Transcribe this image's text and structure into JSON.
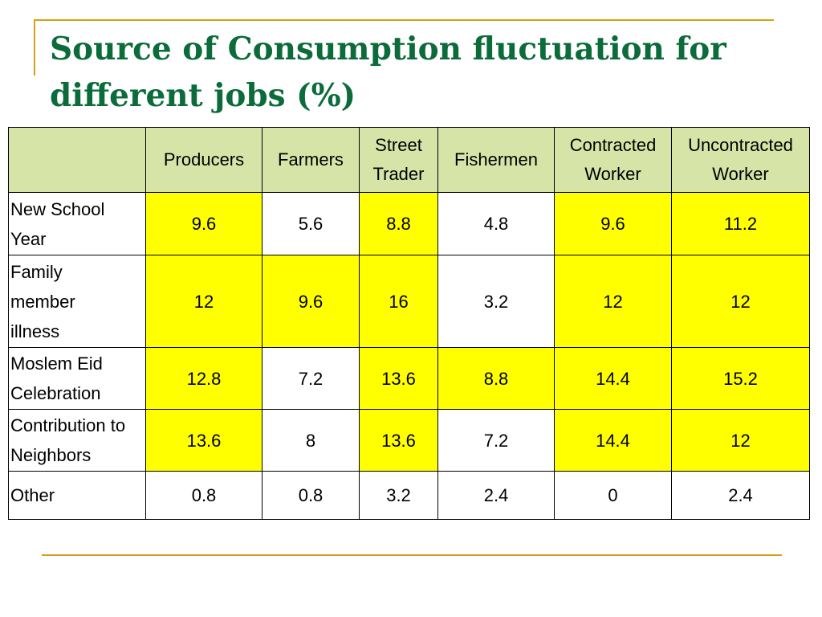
{
  "slide": {
    "title": "Source of Consumption fluctuation for different jobs (%)"
  },
  "table": {
    "headers": [
      "",
      "Producers",
      "Farmers",
      "Street Trader",
      "Fishermen",
      "Contracted Worker",
      "Uncontracted Worker"
    ],
    "header_background": "#d7e4a8",
    "highlight_color": "#ffff00",
    "rows": [
      {
        "label": "New School Year",
        "values": [
          "9.6",
          "5.6",
          "8.8",
          "4.8",
          "9.6",
          "11.2"
        ],
        "highlight": [
          true,
          false,
          true,
          false,
          true,
          true
        ]
      },
      {
        "label": "Family member illness",
        "values": [
          "12",
          "9.6",
          "16",
          "3.2",
          "12",
          "12"
        ],
        "highlight": [
          true,
          true,
          true,
          false,
          true,
          true
        ]
      },
      {
        "label": "Moslem Eid Celebration",
        "values": [
          "12.8",
          "7.2",
          "13.6",
          "8.8",
          "14.4",
          "15.2"
        ],
        "highlight": [
          true,
          false,
          true,
          true,
          true,
          true
        ]
      },
      {
        "label": "Contribution to Neighbors",
        "values": [
          "13.6",
          "8",
          "13.6",
          "7.2",
          "14.4",
          "12"
        ],
        "highlight": [
          true,
          false,
          true,
          false,
          true,
          true
        ]
      },
      {
        "label": "Other",
        "values": [
          "0.8",
          "0.8",
          "3.2",
          "2.4",
          "0",
          "2.4"
        ],
        "highlight": [
          false,
          false,
          false,
          false,
          false,
          false
        ]
      }
    ]
  },
  "colors": {
    "title": "#0b6b3a",
    "accent_lines": "#d4a017"
  }
}
